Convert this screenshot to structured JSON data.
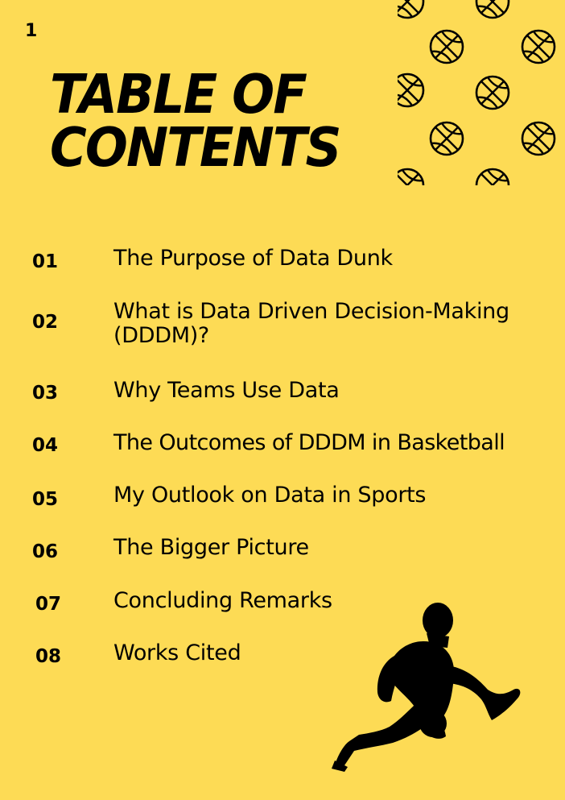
{
  "page_number": "1",
  "title": {
    "line1": "TABLE OF",
    "line2": "CONTENTS"
  },
  "entries": [
    {
      "number": "01",
      "title": "The Purpose of Data Dunk"
    },
    {
      "number": "02",
      "title": "What is Data Driven Decision-Making (DDDM)?"
    },
    {
      "number": "03",
      "title": "Why Teams Use Data"
    },
    {
      "number": "04",
      "title": "The Outcomes of DDDM in Basketball"
    },
    {
      "number": "05",
      "title": "My Outlook on Data in Sports"
    },
    {
      "number": "06",
      "title": "The Bigger Picture"
    },
    {
      "number": "07",
      "title": "Concluding Remarks"
    },
    {
      "number": "08",
      "title": "Works Cited"
    }
  ],
  "colors": {
    "background": "#FDDB55",
    "ink": "#000000"
  },
  "icons": {
    "pattern": "basketball-icon",
    "figure": "basketball-player-silhouette"
  }
}
